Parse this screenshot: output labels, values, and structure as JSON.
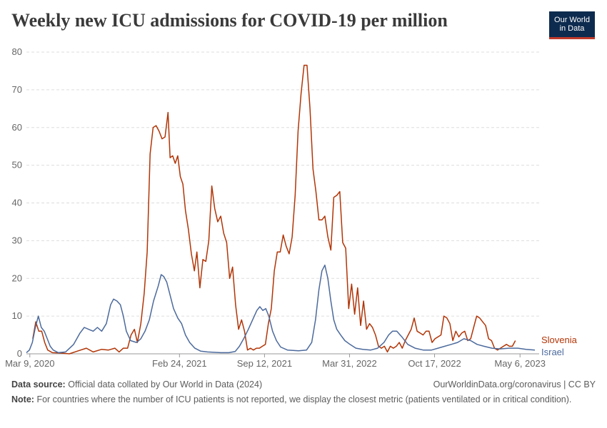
{
  "header": {
    "title": "Weekly new ICU admissions for COVID-19 per million",
    "logo_line1": "Our World",
    "logo_line2": "in Data"
  },
  "footer": {
    "source_label": "Data source:",
    "source_text": "Official data collated by Our World in Data (2024)",
    "url_text": "OurWorldinData.org/coronavirus | CC BY",
    "note_label": "Note:",
    "note_text": "For countries where the number of ICU patients is not reported, we display the closest metric (patients ventilated or in critical condition)."
  },
  "chart_data": {
    "type": "line",
    "title": "Weekly new ICU admissions for COVID-19 per million",
    "xlabel": "",
    "ylabel": "",
    "ylim": [
      0,
      80
    ],
    "yticks": [
      0,
      10,
      20,
      30,
      40,
      50,
      60,
      70,
      80
    ],
    "xlim": [
      "2020-03-01",
      "2023-06-20"
    ],
    "xticks": [
      {
        "date": "2020-03-09",
        "label": "Mar 9, 2020"
      },
      {
        "date": "2021-02-24",
        "label": "Feb 24, 2021"
      },
      {
        "date": "2021-09-12",
        "label": "Sep 12, 2021"
      },
      {
        "date": "2022-03-31",
        "label": "Mar 31, 2022"
      },
      {
        "date": "2022-10-17",
        "label": "Oct 17, 2022"
      },
      {
        "date": "2023-05-06",
        "label": "May 6, 2023"
      }
    ],
    "grid": "horizontal-dashed",
    "legend": "right-end-labels",
    "series": [
      {
        "name": "Slovenia",
        "color": "#b13507",
        "points": [
          [
            "2020-03-16",
            4
          ],
          [
            "2020-03-23",
            8.5
          ],
          [
            "2020-03-30",
            6
          ],
          [
            "2020-04-06",
            6
          ],
          [
            "2020-04-13",
            3
          ],
          [
            "2020-04-20",
            1
          ],
          [
            "2020-05-01",
            0.3
          ],
          [
            "2020-05-20",
            0.2
          ],
          [
            "2020-06-10",
            0
          ],
          [
            "2020-07-01",
            0.8
          ],
          [
            "2020-07-20",
            1.5
          ],
          [
            "2020-08-05",
            0.5
          ],
          [
            "2020-08-25",
            1.2
          ],
          [
            "2020-09-10",
            1
          ],
          [
            "2020-09-25",
            1.5
          ],
          [
            "2020-10-05",
            0.5
          ],
          [
            "2020-10-15",
            1.5
          ],
          [
            "2020-10-25",
            1.5
          ],
          [
            "2020-11-02",
            5
          ],
          [
            "2020-11-10",
            6.5
          ],
          [
            "2020-11-17",
            3
          ],
          [
            "2020-11-25",
            8
          ],
          [
            "2020-12-03",
            16
          ],
          [
            "2020-12-10",
            27
          ],
          [
            "2020-12-17",
            53
          ],
          [
            "2020-12-24",
            60
          ],
          [
            "2020-12-31",
            60.5
          ],
          [
            "2021-01-07",
            59
          ],
          [
            "2021-01-14",
            57
          ],
          [
            "2021-01-21",
            57.5
          ],
          [
            "2021-01-28",
            64
          ],
          [
            "2021-02-02",
            52
          ],
          [
            "2021-02-08",
            52.5
          ],
          [
            "2021-02-14",
            50.5
          ],
          [
            "2021-02-20",
            52.5
          ],
          [
            "2021-02-26",
            47
          ],
          [
            "2021-03-04",
            45
          ],
          [
            "2021-03-10",
            38
          ],
          [
            "2021-03-17",
            33
          ],
          [
            "2021-03-24",
            26.5
          ],
          [
            "2021-03-31",
            22
          ],
          [
            "2021-04-06",
            27
          ],
          [
            "2021-04-13",
            17.5
          ],
          [
            "2021-04-20",
            25
          ],
          [
            "2021-04-27",
            24.5
          ],
          [
            "2021-05-04",
            30
          ],
          [
            "2021-05-11",
            44.5
          ],
          [
            "2021-05-18",
            38.5
          ],
          [
            "2021-05-25",
            35
          ],
          [
            "2021-06-01",
            36.5
          ],
          [
            "2021-06-08",
            32
          ],
          [
            "2021-06-15",
            29.5
          ],
          [
            "2021-06-22",
            20
          ],
          [
            "2021-06-29",
            23
          ],
          [
            "2021-07-06",
            13
          ],
          [
            "2021-07-13",
            6.5
          ],
          [
            "2021-07-20",
            9
          ],
          [
            "2021-07-27",
            6
          ],
          [
            "2021-08-03",
            1
          ],
          [
            "2021-08-10",
            1.5
          ],
          [
            "2021-08-17",
            1
          ],
          [
            "2021-08-24",
            1.5
          ],
          [
            "2021-08-31",
            1.5
          ],
          [
            "2021-09-07",
            2
          ],
          [
            "2021-09-14",
            2.5
          ],
          [
            "2021-09-21",
            8
          ],
          [
            "2021-09-28",
            12
          ],
          [
            "2021-10-05",
            22
          ],
          [
            "2021-10-12",
            27
          ],
          [
            "2021-10-19",
            27
          ],
          [
            "2021-10-26",
            31.5
          ],
          [
            "2021-11-02",
            28.5
          ],
          [
            "2021-11-09",
            26.5
          ],
          [
            "2021-11-16",
            31
          ],
          [
            "2021-11-23",
            42
          ],
          [
            "2021-11-30",
            59
          ],
          [
            "2021-12-07",
            69
          ],
          [
            "2021-12-14",
            76.5
          ],
          [
            "2021-12-21",
            76.5
          ],
          [
            "2021-12-28",
            65
          ],
          [
            "2022-01-04",
            49
          ],
          [
            "2022-01-11",
            43
          ],
          [
            "2022-01-18",
            35.5
          ],
          [
            "2022-01-25",
            35.5
          ],
          [
            "2022-02-01",
            36.5
          ],
          [
            "2022-02-08",
            31
          ],
          [
            "2022-02-15",
            27.5
          ],
          [
            "2022-02-22",
            41.5
          ],
          [
            "2022-03-01",
            42
          ],
          [
            "2022-03-08",
            43
          ],
          [
            "2022-03-15",
            29.5
          ],
          [
            "2022-03-22",
            28
          ],
          [
            "2022-03-29",
            12
          ],
          [
            "2022-04-05",
            18.5
          ],
          [
            "2022-04-12",
            10.5
          ],
          [
            "2022-04-19",
            17.5
          ],
          [
            "2022-04-26",
            7.5
          ],
          [
            "2022-05-03",
            14
          ],
          [
            "2022-05-10",
            6.5
          ],
          [
            "2022-05-17",
            8
          ],
          [
            "2022-05-24",
            7
          ],
          [
            "2022-05-31",
            5
          ],
          [
            "2022-06-07",
            2
          ],
          [
            "2022-06-14",
            1.5
          ],
          [
            "2022-06-21",
            2
          ],
          [
            "2022-06-28",
            0.5
          ],
          [
            "2022-07-05",
            2
          ],
          [
            "2022-07-12",
            1.5
          ],
          [
            "2022-07-19",
            2
          ],
          [
            "2022-07-26",
            3
          ],
          [
            "2022-08-02",
            1.5
          ],
          [
            "2022-08-09",
            3.5
          ],
          [
            "2022-08-16",
            5
          ],
          [
            "2022-08-23",
            6.5
          ],
          [
            "2022-08-30",
            9.5
          ],
          [
            "2022-09-06",
            6
          ],
          [
            "2022-09-13",
            5.5
          ],
          [
            "2022-09-20",
            5
          ],
          [
            "2022-09-27",
            6
          ],
          [
            "2022-10-04",
            6
          ],
          [
            "2022-10-11",
            3
          ],
          [
            "2022-10-18",
            4
          ],
          [
            "2022-10-25",
            4.5
          ],
          [
            "2022-11-01",
            5
          ],
          [
            "2022-11-08",
            10
          ],
          [
            "2022-11-15",
            9.5
          ],
          [
            "2022-11-22",
            8
          ],
          [
            "2022-11-29",
            3.5
          ],
          [
            "2022-12-06",
            6
          ],
          [
            "2022-12-13",
            4.5
          ],
          [
            "2022-12-20",
            5.5
          ],
          [
            "2022-12-27",
            6
          ],
          [
            "2023-01-03",
            3.5
          ],
          [
            "2023-01-10",
            4
          ],
          [
            "2023-01-17",
            7
          ],
          [
            "2023-01-24",
            10
          ],
          [
            "2023-01-31",
            9.5
          ],
          [
            "2023-02-07",
            8.5
          ],
          [
            "2023-02-14",
            7.5
          ],
          [
            "2023-02-21",
            4
          ],
          [
            "2023-02-28",
            3.5
          ],
          [
            "2023-03-07",
            1.5
          ],
          [
            "2023-03-14",
            1
          ],
          [
            "2023-03-21",
            1.5
          ],
          [
            "2023-03-28",
            2
          ],
          [
            "2023-04-04",
            2.5
          ],
          [
            "2023-04-11",
            2
          ],
          [
            "2023-04-18",
            2
          ],
          [
            "2023-04-25",
            3.5
          ]
        ]
      },
      {
        "name": "Israel",
        "color": "#4c6a9c",
        "points": [
          [
            "2020-03-01",
            0.3
          ],
          [
            "2020-03-08",
            1
          ],
          [
            "2020-03-15",
            3
          ],
          [
            "2020-03-22",
            7
          ],
          [
            "2020-03-29",
            10
          ],
          [
            "2020-04-05",
            7
          ],
          [
            "2020-04-12",
            6
          ],
          [
            "2020-04-19",
            4
          ],
          [
            "2020-04-26",
            2
          ],
          [
            "2020-05-03",
            1
          ],
          [
            "2020-05-15",
            0.3
          ],
          [
            "2020-06-01",
            0.5
          ],
          [
            "2020-06-20",
            2.5
          ],
          [
            "2020-07-05",
            5.5
          ],
          [
            "2020-07-15",
            7
          ],
          [
            "2020-07-25",
            6.5
          ],
          [
            "2020-08-05",
            6
          ],
          [
            "2020-08-15",
            7
          ],
          [
            "2020-08-25",
            6
          ],
          [
            "2020-09-05",
            8
          ],
          [
            "2020-09-15",
            13
          ],
          [
            "2020-09-22",
            14.5
          ],
          [
            "2020-09-30",
            14
          ],
          [
            "2020-10-08",
            13
          ],
          [
            "2020-10-15",
            10
          ],
          [
            "2020-10-22",
            6
          ],
          [
            "2020-11-01",
            3.5
          ],
          [
            "2020-11-15",
            3
          ],
          [
            "2020-11-25",
            4
          ],
          [
            "2020-12-05",
            6
          ],
          [
            "2020-12-15",
            9
          ],
          [
            "2020-12-25",
            14
          ],
          [
            "2021-01-05",
            18
          ],
          [
            "2021-01-12",
            21
          ],
          [
            "2021-01-18",
            20.5
          ],
          [
            "2021-01-25",
            19
          ],
          [
            "2021-02-01",
            16
          ],
          [
            "2021-02-10",
            12
          ],
          [
            "2021-02-20",
            9.5
          ],
          [
            "2021-03-01",
            8
          ],
          [
            "2021-03-10",
            5
          ],
          [
            "2021-03-20",
            3
          ],
          [
            "2021-04-01",
            1.5
          ],
          [
            "2021-04-15",
            0.7
          ],
          [
            "2021-05-01",
            0.5
          ],
          [
            "2021-06-01",
            0.3
          ],
          [
            "2021-06-20",
            0.3
          ],
          [
            "2021-07-05",
            0.6
          ],
          [
            "2021-07-15",
            2
          ],
          [
            "2021-07-25",
            4
          ],
          [
            "2021-08-05",
            6.5
          ],
          [
            "2021-08-15",
            9
          ],
          [
            "2021-08-25",
            11.5
          ],
          [
            "2021-09-01",
            12.5
          ],
          [
            "2021-09-08",
            11.5
          ],
          [
            "2021-09-15",
            12
          ],
          [
            "2021-09-22",
            10
          ],
          [
            "2021-10-01",
            6
          ],
          [
            "2021-10-10",
            3.5
          ],
          [
            "2021-10-20",
            1.8
          ],
          [
            "2021-11-05",
            1
          ],
          [
            "2021-12-01",
            0.8
          ],
          [
            "2021-12-20",
            1
          ],
          [
            "2022-01-01",
            3
          ],
          [
            "2022-01-10",
            9
          ],
          [
            "2022-01-18",
            17
          ],
          [
            "2022-01-25",
            22
          ],
          [
            "2022-02-01",
            23.5
          ],
          [
            "2022-02-08",
            20
          ],
          [
            "2022-02-15",
            14
          ],
          [
            "2022-02-22",
            9
          ],
          [
            "2022-03-01",
            6.5
          ],
          [
            "2022-03-10",
            5
          ],
          [
            "2022-03-20",
            3.5
          ],
          [
            "2022-04-01",
            2.5
          ],
          [
            "2022-04-15",
            1.5
          ],
          [
            "2022-05-01",
            1.2
          ],
          [
            "2022-05-20",
            1
          ],
          [
            "2022-06-05",
            1.5
          ],
          [
            "2022-06-20",
            3
          ],
          [
            "2022-07-01",
            5
          ],
          [
            "2022-07-10",
            6
          ],
          [
            "2022-07-20",
            6
          ],
          [
            "2022-08-01",
            4.5
          ],
          [
            "2022-08-15",
            2.5
          ],
          [
            "2022-09-01",
            1.5
          ],
          [
            "2022-09-20",
            1
          ],
          [
            "2022-10-10",
            1
          ],
          [
            "2022-10-25",
            1.5
          ],
          [
            "2022-11-10",
            2
          ],
          [
            "2022-11-25",
            2.5
          ],
          [
            "2022-12-10",
            3
          ],
          [
            "2022-12-25",
            4
          ],
          [
            "2023-01-10",
            3.5
          ],
          [
            "2023-01-25",
            2.5
          ],
          [
            "2023-02-10",
            2
          ],
          [
            "2023-03-01",
            1.5
          ],
          [
            "2023-03-20",
            1.3
          ],
          [
            "2023-04-10",
            1.5
          ],
          [
            "2023-05-01",
            1.5
          ],
          [
            "2023-05-20",
            1.2
          ],
          [
            "2023-06-10",
            1
          ]
        ]
      }
    ]
  }
}
